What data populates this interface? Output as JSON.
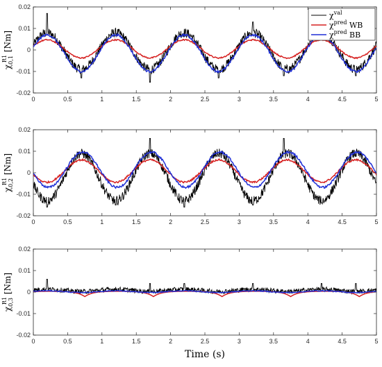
{
  "chart_data": [
    {
      "type": "line",
      "ylabel_main": "χ",
      "ylabel_sup": "R1",
      "ylabel_sub": "0,1",
      "ylabel_unit": " [Nm]",
      "xlim": [
        0,
        5
      ],
      "ylim": [
        -0.02,
        0.02
      ],
      "x_ticks": [
        0,
        0.5,
        1,
        1.5,
        2,
        2.5,
        3,
        3.5,
        4,
        4.5,
        5
      ],
      "y_ticks": [
        -0.02,
        -0.01,
        0,
        0.01,
        0.02
      ],
      "x_tick_labels": [
        "0",
        "0.5",
        "1",
        "1.5",
        "2",
        "2.5",
        "3",
        "3.5",
        "4",
        "4.5",
        "5"
      ],
      "y_tick_labels": [
        "-0.02",
        "-0.01",
        "0",
        "0.01",
        "0.02"
      ],
      "grid": false,
      "legend_position": "top-right",
      "series": [
        {
          "name_main": "χ",
          "name_sup": "val",
          "name_rest": "",
          "color": "#000000",
          "model": {
            "type": "sine",
            "period": 1,
            "phase_peak": 0.2,
            "amp": 0.0085,
            "offset": -0.0005,
            "noise": 0.0022,
            "spikes": [
              [
                0.2,
                0.017
              ],
              [
                0.7,
                -0.013
              ],
              [
                1.7,
                -0.015
              ],
              [
                2.7,
                -0.013
              ],
              [
                3.2,
                0.013
              ],
              [
                3.65,
                -0.012
              ],
              [
                4.7,
                -0.012
              ]
            ]
          }
        },
        {
          "name_main": "χ",
          "name_sup": "pred",
          "name_rest": " WB",
          "color": "#d62020",
          "model": {
            "type": "sine",
            "period": 1,
            "phase_peak": 0.2,
            "amp": 0.0042,
            "offset": 0.0005,
            "noise": 0.0003,
            "spikes": []
          }
        },
        {
          "name_main": "χ",
          "name_sup": "pred",
          "name_rest": " BB",
          "color": "#1f2fd6",
          "model": {
            "type": "sine",
            "period": 1,
            "phase_peak": 0.2,
            "amp": 0.0085,
            "offset": -0.0015,
            "noise": 0.0005,
            "spikes": []
          }
        }
      ]
    },
    {
      "type": "line",
      "ylabel_main": "χ",
      "ylabel_sup": "R1",
      "ylabel_sub": "0,2",
      "ylabel_unit": " [Nm]",
      "xlim": [
        0,
        5
      ],
      "ylim": [
        -0.02,
        0.02
      ],
      "x_ticks": [
        0,
        0.5,
        1,
        1.5,
        2,
        2.5,
        3,
        3.5,
        4,
        4.5,
        5
      ],
      "y_ticks": [
        -0.02,
        -0.01,
        0,
        0.01,
        0.02
      ],
      "x_tick_labels": [
        "0",
        "0.5",
        "1",
        "1.5",
        "2",
        "2.5",
        "3",
        "3.5",
        "4",
        "4.5",
        "5"
      ],
      "y_tick_labels": [
        "-0.02",
        "-0.01",
        "0",
        "0.01",
        "0.02"
      ],
      "grid": false,
      "series": [
        {
          "color": "#000000",
          "model": {
            "type": "sine",
            "period": 1,
            "phase_peak": 0.7,
            "amp": 0.011,
            "offset": -0.002,
            "noise": 0.0022,
            "spikes": [
              [
                0.2,
                -0.016
              ],
              [
                1.7,
                0.016
              ],
              [
                1.2,
                -0.015
              ],
              [
                2.2,
                -0.016
              ],
              [
                3.65,
                0.016
              ],
              [
                3.2,
                -0.015
              ],
              [
                4.2,
                -0.014
              ]
            ]
          }
        },
        {
          "color": "#d62020",
          "model": {
            "type": "sine",
            "period": 1,
            "phase_peak": 0.7,
            "amp": 0.0052,
            "offset": 0.0008,
            "noise": 0.0004,
            "spikes": []
          }
        },
        {
          "color": "#1f2fd6",
          "model": {
            "type": "sine",
            "period": 1,
            "phase_peak": 0.72,
            "amp": 0.0082,
            "offset": 0.0014,
            "noise": 0.0005,
            "spikes": []
          }
        }
      ]
    },
    {
      "type": "line",
      "ylabel_main": "χ",
      "ylabel_sup": "R1",
      "ylabel_sub": "0,3",
      "ylabel_unit": " [Nm]",
      "xlim": [
        0,
        5
      ],
      "ylim": [
        -0.02,
        0.02
      ],
      "x_ticks": [
        0,
        0.5,
        1,
        1.5,
        2,
        2.5,
        3,
        3.5,
        4,
        4.5,
        5
      ],
      "y_ticks": [
        -0.02,
        -0.01,
        0,
        0.01,
        0.02
      ],
      "x_tick_labels": [
        "0",
        "0.5",
        "1",
        "1.5",
        "2",
        "2.5",
        "3",
        "3.5",
        "4",
        "4.5",
        "5"
      ],
      "y_tick_labels": [
        "-0.02",
        "-0.01",
        "0",
        "0.01",
        "0.02"
      ],
      "xlabel": "Time (s)",
      "grid": false,
      "series": [
        {
          "color": "#000000",
          "model": {
            "type": "sine",
            "period": 1,
            "phase_peak": 0.2,
            "amp": 0.0005,
            "offset": 0.0008,
            "noise": 0.0011,
            "spikes": [
              [
                0.2,
                0.006
              ],
              [
                1.7,
                0.004
              ],
              [
                2.2,
                0.004
              ],
              [
                3.2,
                0.004
              ],
              [
                4.2,
                0.004
              ],
              [
                4.7,
                0.004
              ]
            ]
          }
        },
        {
          "color": "#d62020",
          "model": {
            "type": "cusp",
            "period": 1,
            "phase_peak": 0.75,
            "amp": -0.0025,
            "offset": 0.0004,
            "noise": 0.0,
            "spikes": []
          }
        },
        {
          "color": "#1f2fd6",
          "model": {
            "type": "sine",
            "period": 1,
            "phase_peak": 0.2,
            "amp": 0.0004,
            "offset": 0.0002,
            "noise": 0.0002,
            "spikes": []
          }
        }
      ]
    }
  ]
}
